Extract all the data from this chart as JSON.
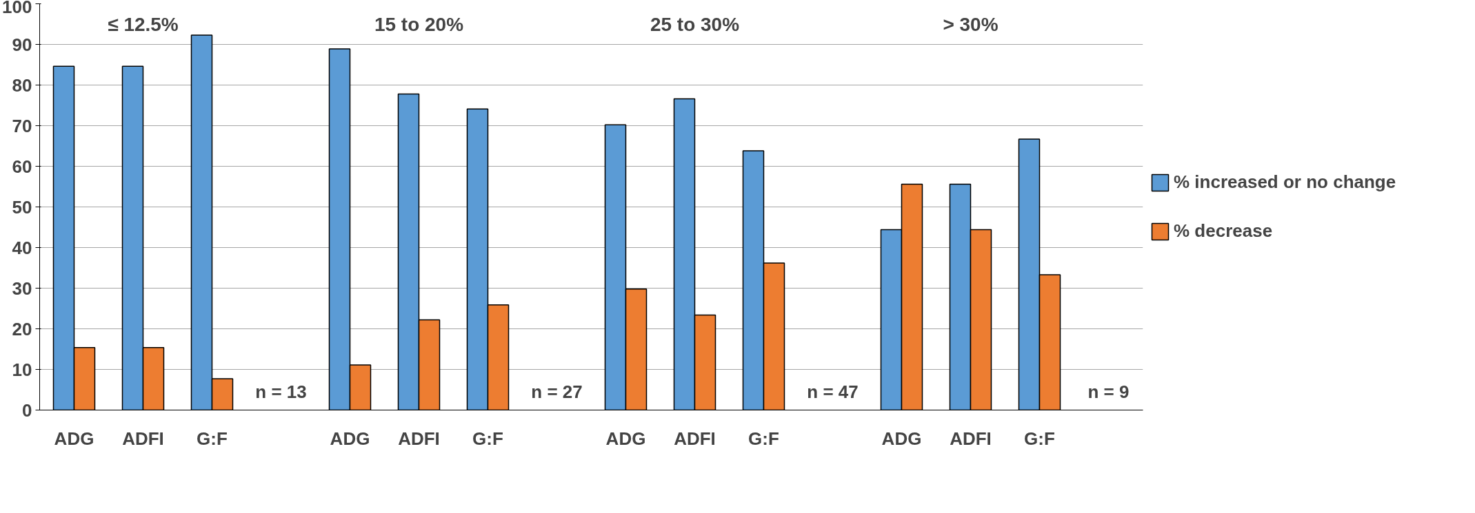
{
  "chart_data": {
    "type": "bar",
    "categories": [
      "ADG",
      "ADFI",
      "G:F",
      null,
      "ADG",
      "ADFI",
      "G:F",
      null,
      "ADG",
      "ADFI",
      "G:F",
      null,
      "ADG",
      "ADFI",
      "G:F"
    ],
    "series": [
      {
        "name": "% increased or no change",
        "color": "#5b9bd5",
        "values": [
          84.6,
          84.6,
          92.3,
          null,
          88.9,
          77.8,
          74.1,
          null,
          70.2,
          76.6,
          63.8,
          null,
          44.4,
          55.6,
          66.7
        ]
      },
      {
        "name": "% decrease",
        "color": "#ed7d31",
        "values": [
          15.4,
          15.4,
          7.7,
          null,
          11.1,
          22.2,
          25.9,
          null,
          29.8,
          23.4,
          36.2,
          null,
          55.6,
          44.4,
          33.3
        ]
      }
    ],
    "ylim": [
      0,
      100
    ],
    "yticks": [
      0,
      10,
      20,
      30,
      40,
      50,
      60,
      70,
      80,
      90,
      100
    ],
    "grid": "y",
    "legend": "right",
    "annotations": [
      "≤ 12.5%",
      "15 to 20%",
      "25 to 30%",
      "> 30%",
      "n = 13",
      "n = 27",
      "n = 47",
      "n = 9"
    ]
  }
}
